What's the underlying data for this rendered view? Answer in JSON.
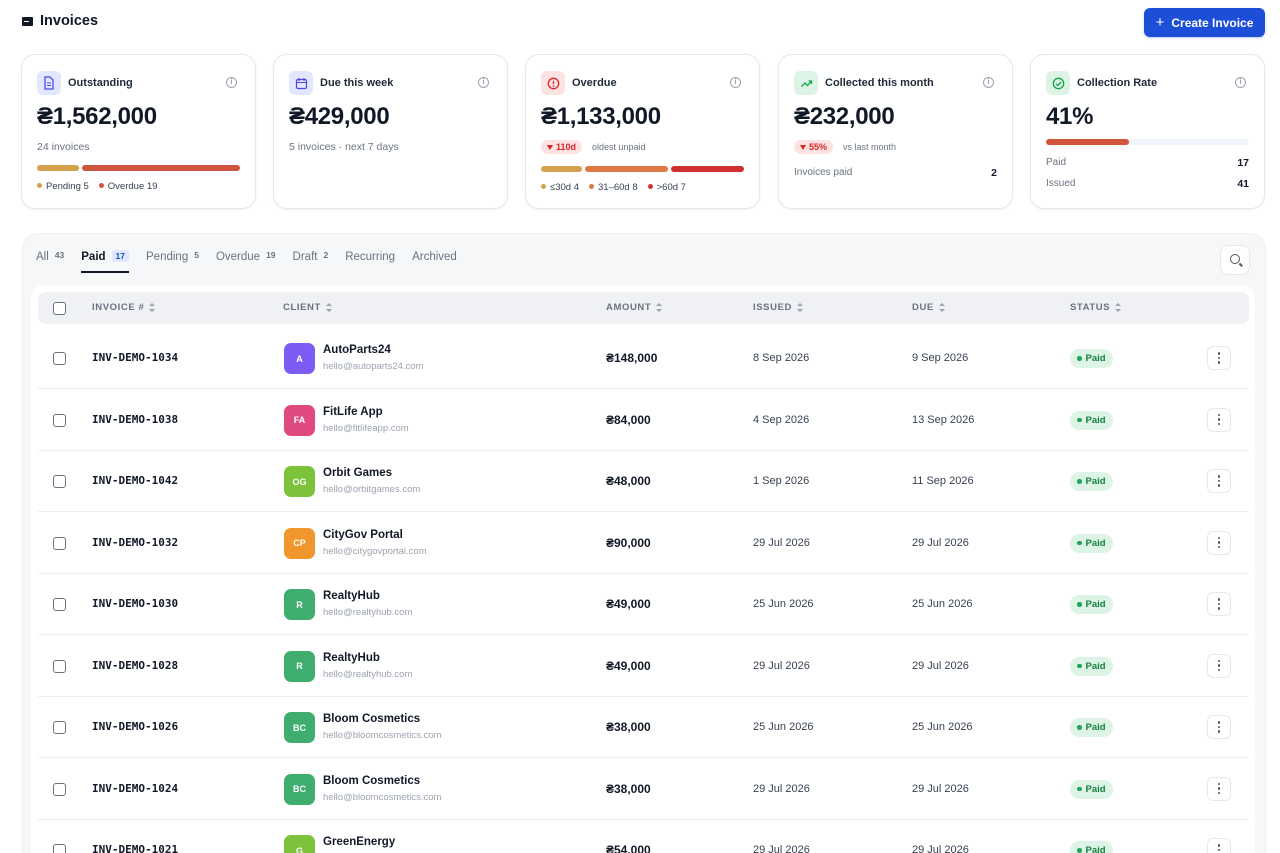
{
  "header": {
    "title": "Invoices",
    "create_label": "Create Invoice"
  },
  "cards": {
    "outstanding": {
      "title": "Outstanding",
      "value": "₴1,562,000",
      "sub": "24 invoices",
      "legend_pending": "Pending 5",
      "legend_overdue": "Overdue 19",
      "bar_pending": 5,
      "bar_overdue": 19,
      "colors": {
        "pending": "#d4a24c",
        "overdue": "#cf5540"
      }
    },
    "due_week": {
      "title": "Due this week",
      "value": "₴429,000",
      "sub": "5 invoices · next 7 days"
    },
    "overdue": {
      "title": "Overdue",
      "value": "₴1,133,000",
      "badge": "110d",
      "badge_note": "oldest unpaid",
      "legend_a": "≤30d 4",
      "legend_b": "31–60d 8",
      "legend_c": ">60d 7",
      "bar_a": 4,
      "bar_b": 8,
      "bar_c": 7,
      "colors": {
        "a": "#d4a24c",
        "b": "#dd7a44",
        "c": "#cf3030"
      }
    },
    "collected": {
      "title": "Collected this month",
      "value": "₴232,000",
      "badge": "55%",
      "badge_note": "vs last month",
      "paid_label": "Invoices paid",
      "paid_value": "2"
    },
    "rate": {
      "title": "Collection Rate",
      "value": "41%",
      "fill": 0.41,
      "paid_label": "Paid",
      "paid_value": "17",
      "issued_label": "Issued",
      "issued_value": "41"
    }
  },
  "tabs": [
    {
      "label": "All",
      "count": "43",
      "active": false
    },
    {
      "label": "Paid",
      "count": "17",
      "active": true
    },
    {
      "label": "Pending",
      "count": "5",
      "active": false
    },
    {
      "label": "Overdue",
      "count": "19",
      "active": false
    },
    {
      "label": "Draft",
      "count": "2",
      "active": false
    },
    {
      "label": "Recurring",
      "count": "",
      "active": false
    },
    {
      "label": "Archived",
      "count": "",
      "active": false
    }
  ],
  "table": {
    "columns": {
      "invoice": "INVOICE #",
      "client": "CLIENT",
      "amount": "AMOUNT",
      "issued": "ISSUED",
      "due": "DUE",
      "status": "STATUS"
    },
    "rows": [
      {
        "invoice": "INV-DEMO-1034",
        "initials": "A",
        "color": "#7c5cf5",
        "client": "AutoParts24",
        "email": "hello@autoparts24.com",
        "amount": "₴148,000",
        "issued": "8 Sep 2026",
        "due": "9 Sep 2026",
        "status": "Paid"
      },
      {
        "invoice": "INV-DEMO-1038",
        "initials": "FA",
        "color": "#e0497f",
        "client": "FitLife App",
        "email": "hello@fitlifeapp.com",
        "amount": "₴84,000",
        "issued": "4 Sep 2026",
        "due": "13 Sep 2026",
        "status": "Paid"
      },
      {
        "invoice": "INV-DEMO-1042",
        "initials": "OG",
        "color": "#7cc23a",
        "client": "Orbit Games",
        "email": "hello@orbitgames.com",
        "amount": "₴48,000",
        "issued": "1 Sep 2026",
        "due": "11 Sep 2026",
        "status": "Paid"
      },
      {
        "invoice": "INV-DEMO-1032",
        "initials": "CP",
        "color": "#f0962c",
        "client": "CityGov Portal",
        "email": "hello@citygovportal.com",
        "amount": "₴90,000",
        "issued": "29 Jul 2026",
        "due": "29 Jul 2026",
        "status": "Paid"
      },
      {
        "invoice": "INV-DEMO-1030",
        "initials": "R",
        "color": "#3fad6d",
        "client": "RealtyHub",
        "email": "hello@realtyhub.com",
        "amount": "₴49,000",
        "issued": "25 Jun 2026",
        "due": "25 Jun 2026",
        "status": "Paid"
      },
      {
        "invoice": "INV-DEMO-1028",
        "initials": "R",
        "color": "#3fad6d",
        "client": "RealtyHub",
        "email": "hello@realtyhub.com",
        "amount": "₴49,000",
        "issued": "29 Jul 2026",
        "due": "29 Jul 2026",
        "status": "Paid"
      },
      {
        "invoice": "INV-DEMO-1026",
        "initials": "BC",
        "color": "#3fad6d",
        "client": "Bloom Cosmetics",
        "email": "hello@bloomcosmetics.com",
        "amount": "₴38,000",
        "issued": "25 Jun 2026",
        "due": "25 Jun 2026",
        "status": "Paid"
      },
      {
        "invoice": "INV-DEMO-1024",
        "initials": "BC",
        "color": "#3fad6d",
        "client": "Bloom Cosmetics",
        "email": "hello@bloomcosmetics.com",
        "amount": "₴38,000",
        "issued": "29 Jul 2026",
        "due": "29 Jul 2026",
        "status": "Paid"
      },
      {
        "invoice": "INV-DEMO-1021",
        "initials": "G",
        "color": "#7cc23a",
        "client": "GreenEnergy",
        "email": "",
        "amount": "₴54,000",
        "issued": "29 Jul 2026",
        "due": "29 Jul 2026",
        "status": "Paid"
      }
    ]
  }
}
